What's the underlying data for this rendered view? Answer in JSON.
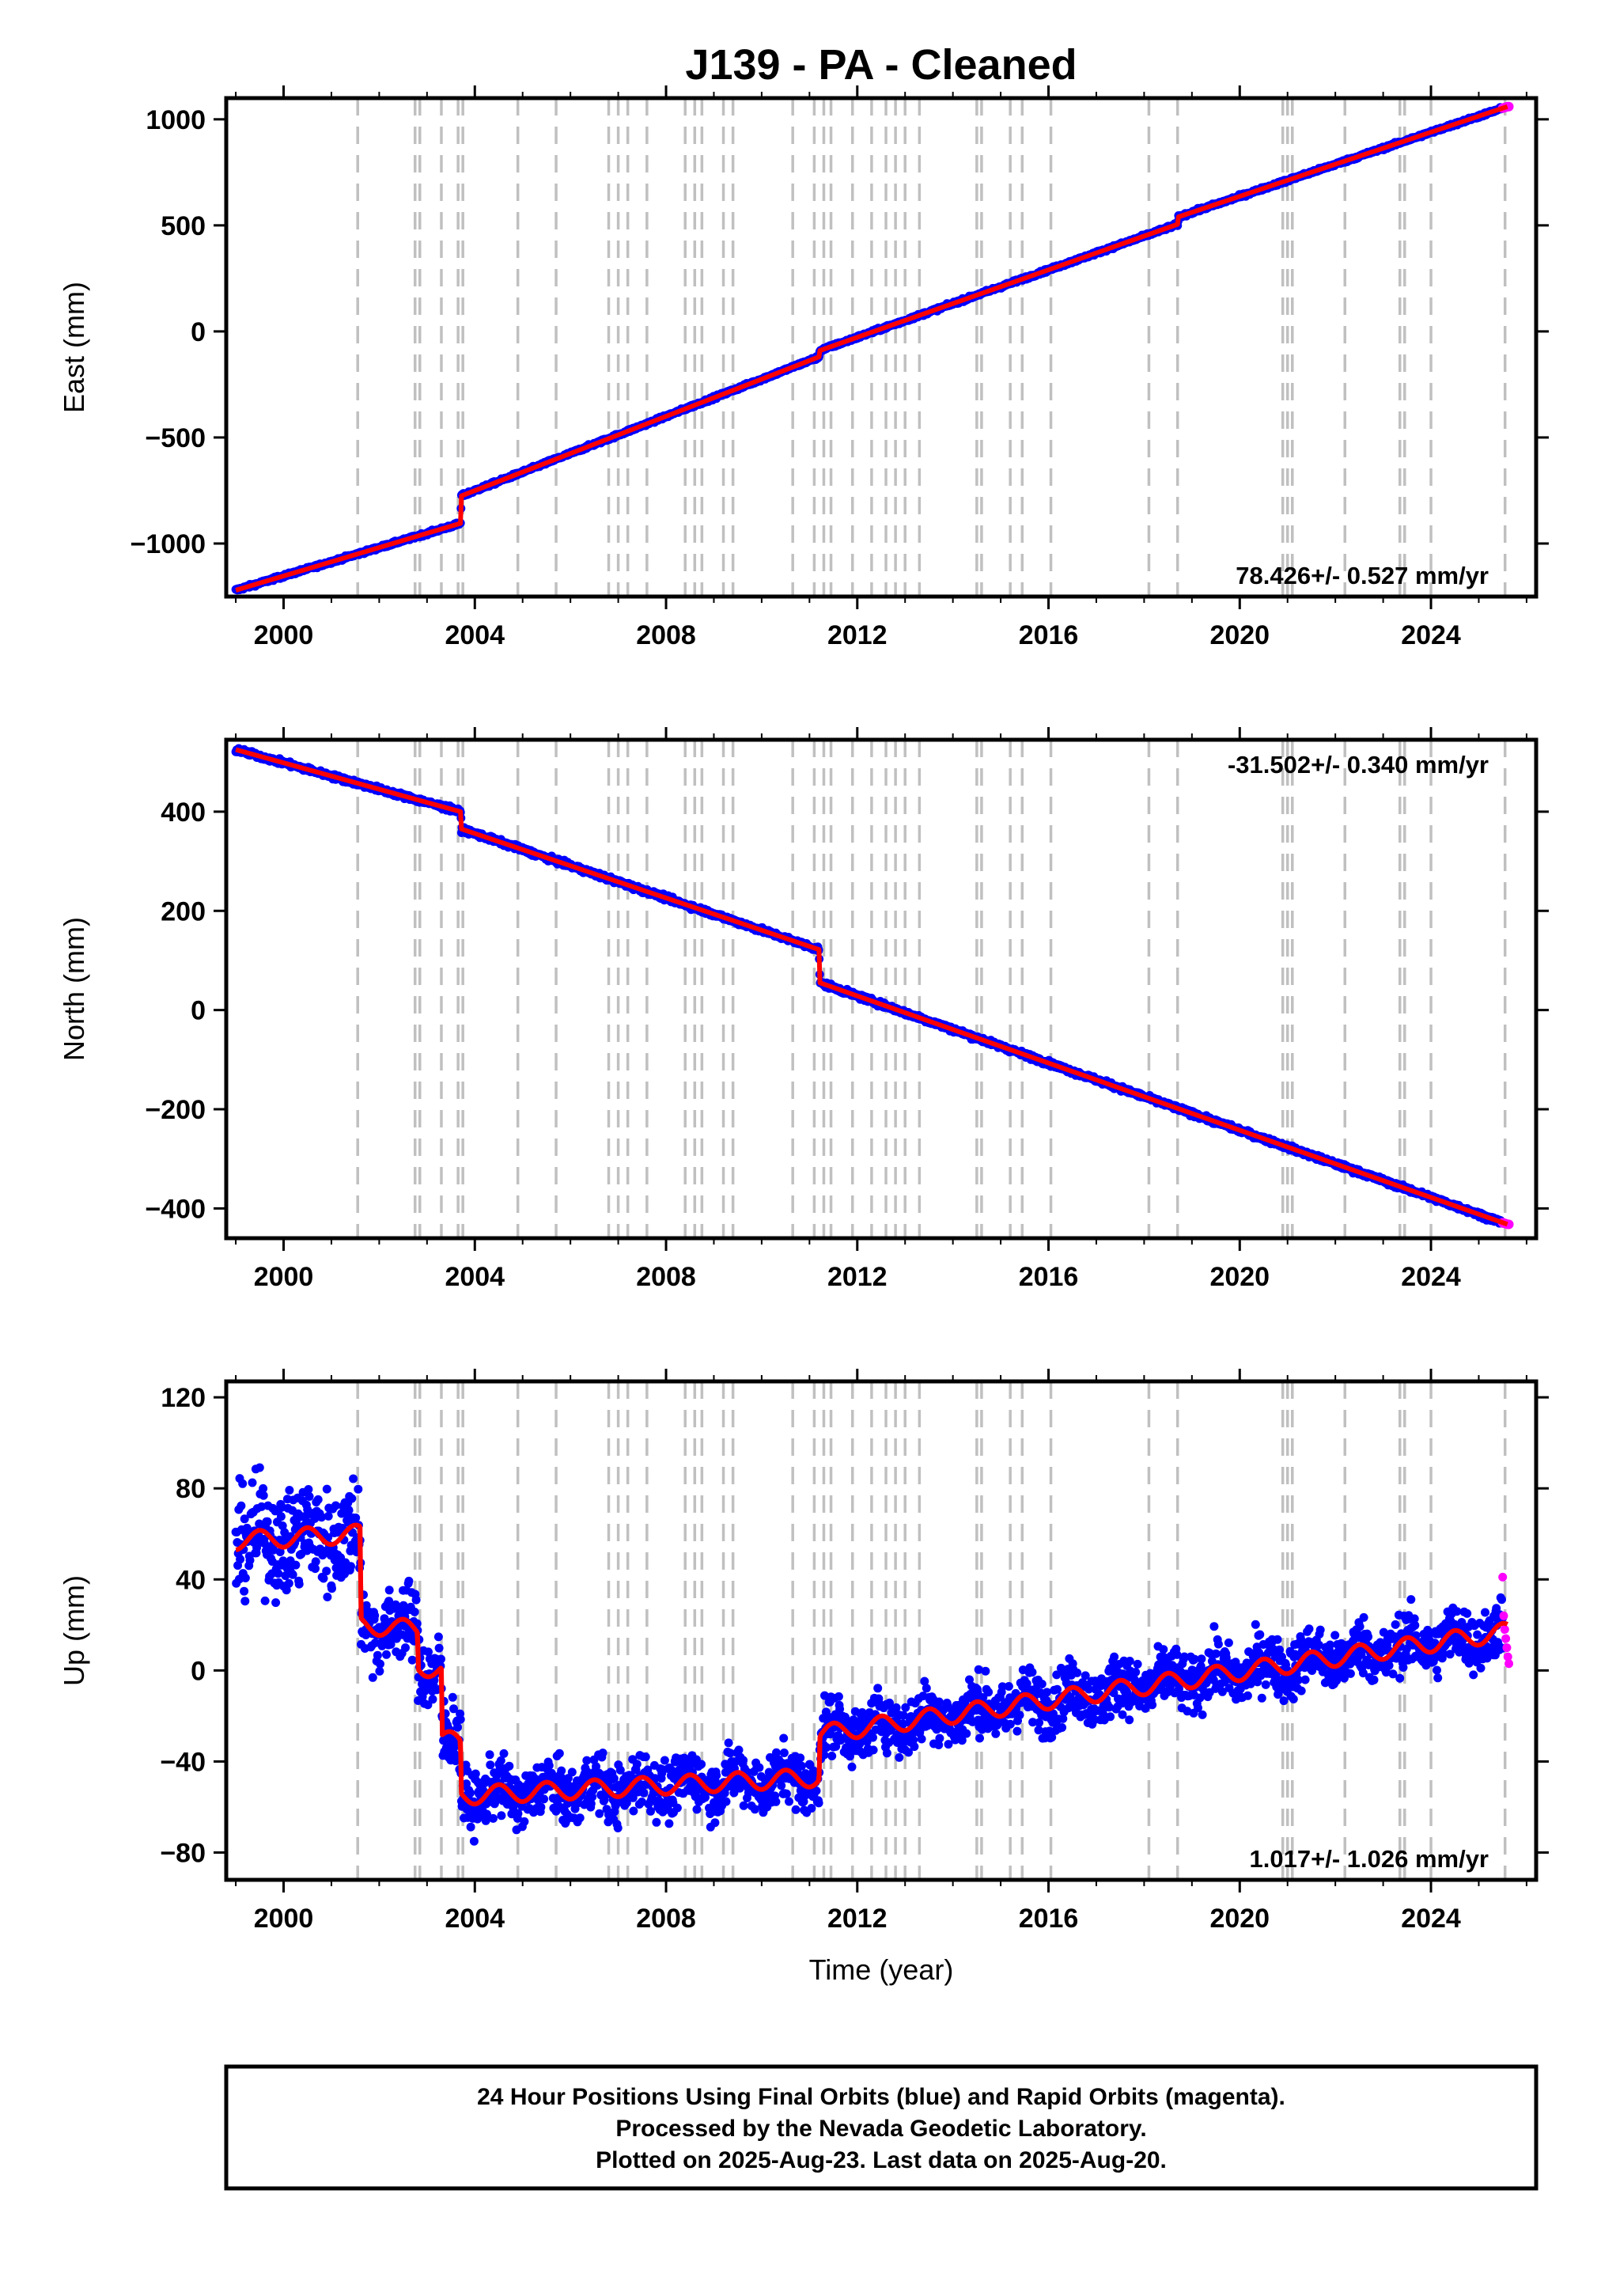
{
  "colors": {
    "final_orbits": "#0000ff",
    "rapid_orbits": "#ff00ff",
    "model": "#ff0000",
    "event_lines": "#c0c0c0",
    "frame": "#000000"
  },
  "chart_data": [
    {
      "type": "scatter",
      "title": "J139  - PA - Cleaned",
      "xlabel": "",
      "ylabel": "East (mm)",
      "xlim": [
        1998.8,
        2026.2
      ],
      "ylim": [
        -1250,
        1100
      ],
      "xticks": [
        2000,
        2004,
        2008,
        2012,
        2016,
        2020,
        2024
      ],
      "yticks": [
        -1000,
        -500,
        0,
        500,
        1000
      ],
      "x_tick_labels": [
        "2000",
        "2004",
        "2008",
        "2012",
        "2016",
        "2020",
        "2024"
      ],
      "y_tick_labels": [
        "−1000",
        "−500",
        "0",
        "500",
        "1000"
      ],
      "annotation": "78.426+/- 0.527 mm/yr",
      "annotation_position": "bottom-right",
      "grid": false,
      "model_breakpoints": [
        {
          "x": 1999.0,
          "y": -1220
        },
        {
          "x": 2003.7,
          "y": -905
        },
        {
          "x": 2003.72,
          "y": -775
        },
        {
          "x": 2011.2,
          "y": -120
        },
        {
          "x": 2011.22,
          "y": -90
        },
        {
          "x": 2018.7,
          "y": 505
        },
        {
          "x": 2018.72,
          "y": 540
        },
        {
          "x": 2025.6,
          "y": 1060
        }
      ],
      "series": [
        {
          "name": "Final Orbits",
          "color": "#0000ff",
          "x_range": [
            1999.0,
            2025.5
          ],
          "scatter_mm": 5
        },
        {
          "name": "Rapid Orbits",
          "color": "#ff00ff",
          "x_range": [
            2025.5,
            2025.63
          ]
        }
      ]
    },
    {
      "type": "scatter",
      "title": "",
      "xlabel": "",
      "ylabel": "North (mm)",
      "xlim": [
        1998.8,
        2026.2
      ],
      "ylim": [
        -460,
        545
      ],
      "xticks": [
        2000,
        2004,
        2008,
        2012,
        2016,
        2020,
        2024
      ],
      "yticks": [
        -400,
        -200,
        0,
        200,
        400
      ],
      "x_tick_labels": [
        "2000",
        "2004",
        "2008",
        "2012",
        "2016",
        "2020",
        "2024"
      ],
      "y_tick_labels": [
        "−400",
        "−200",
        "0",
        "200",
        "400"
      ],
      "annotation": "-31.502+/- 0.340 mm/yr",
      "annotation_position": "top-right",
      "grid": false,
      "model_breakpoints": [
        {
          "x": 1999.0,
          "y": 525
        },
        {
          "x": 2003.7,
          "y": 400
        },
        {
          "x": 2003.72,
          "y": 365
        },
        {
          "x": 2011.2,
          "y": 122
        },
        {
          "x": 2011.22,
          "y": 55
        },
        {
          "x": 2025.6,
          "y": -432
        }
      ],
      "series": [
        {
          "name": "Final Orbits",
          "color": "#0000ff",
          "x_range": [
            1999.0,
            2025.5
          ],
          "scatter_mm": 3.5
        },
        {
          "name": "Rapid Orbits",
          "color": "#ff00ff",
          "x_range": [
            2025.5,
            2025.63
          ]
        }
      ]
    },
    {
      "type": "scatter",
      "title": "",
      "xlabel": "Time (year)",
      "ylabel": "Up (mm)",
      "xlim": [
        1998.8,
        2026.2
      ],
      "ylim": [
        -92,
        127
      ],
      "xticks": [
        2000,
        2004,
        2008,
        2012,
        2016,
        2020,
        2024
      ],
      "yticks": [
        -80,
        -40,
        0,
        40,
        80,
        120
      ],
      "x_tick_labels": [
        "2000",
        "2004",
        "2008",
        "2012",
        "2016",
        "2020",
        "2024"
      ],
      "y_tick_labels": [
        "−80",
        "−40",
        "0",
        "40",
        "80",
        "120"
      ],
      "annotation": "1.017+/- 1.026 mm/yr",
      "annotation_position": "bottom-right",
      "grid": false,
      "model_breakpoints": [
        {
          "x": 1999.0,
          "y": 57
        },
        {
          "x": 2001.6,
          "y": 60
        },
        {
          "x": 2001.62,
          "y": 20
        },
        {
          "x": 2002.8,
          "y": 18
        },
        {
          "x": 2002.82,
          "y": 2
        },
        {
          "x": 2003.3,
          "y": 0
        },
        {
          "x": 2003.32,
          "y": -30
        },
        {
          "x": 2003.7,
          "y": -32
        },
        {
          "x": 2003.72,
          "y": -55
        },
        {
          "x": 2011.2,
          "y": -47
        },
        {
          "x": 2011.22,
          "y": -28
        },
        {
          "x": 2025.6,
          "y": 17
        }
      ],
      "seasonal_amplitude_mm": 4,
      "series": [
        {
          "name": "Final Orbits",
          "color": "#0000ff",
          "x_range": [
            1999.0,
            2025.5
          ],
          "scatter_mm": 9
        },
        {
          "name": "Rapid Orbits",
          "color": "#ff00ff",
          "x_range": [
            2025.5,
            2025.63
          ],
          "values": [
            41,
            24,
            18,
            14,
            10,
            6,
            3
          ]
        }
      ]
    }
  ],
  "event_lines": [
    2001.55,
    2002.75,
    2002.85,
    2003.3,
    2003.65,
    2003.75,
    2004.9,
    2005.7,
    2006.8,
    2007.0,
    2007.2,
    2007.6,
    2008.4,
    2008.6,
    2008.75,
    2009.2,
    2009.4,
    2010.65,
    2011.1,
    2011.3,
    2011.45,
    2011.9,
    2012.3,
    2012.6,
    2012.8,
    2013.0,
    2013.3,
    2014.5,
    2014.6,
    2015.2,
    2015.45,
    2016.05,
    2018.1,
    2018.7,
    2020.9,
    2021.0,
    2021.1,
    2022.2,
    2023.35,
    2023.45,
    2024.0,
    2025.55
  ],
  "info_box": {
    "line1": "24 Hour Positions Using Final Orbits (blue) and Rapid Orbits (magenta).",
    "line2": "Processed by the Nevada Geodetic Laboratory.",
    "line3": "Plotted on 2025-Aug-23. Last data on 2025-Aug-20."
  }
}
